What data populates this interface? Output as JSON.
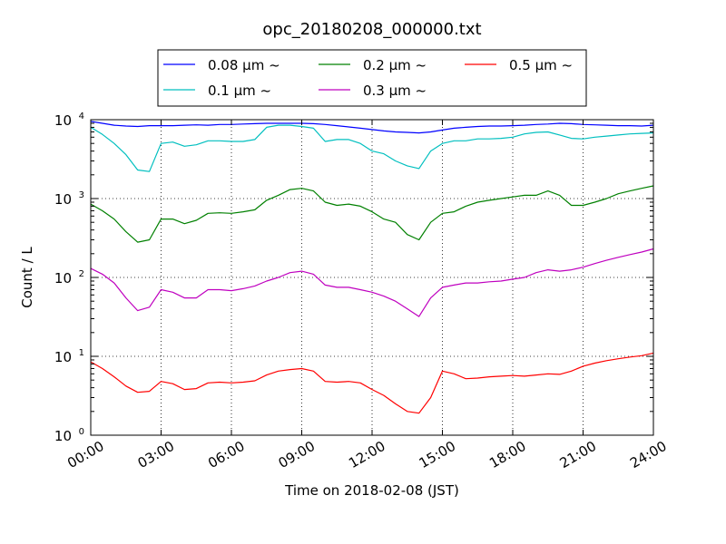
{
  "chart_data": {
    "type": "line",
    "title": "opc_20180208_000000.txt",
    "xlabel": "Time on 2018-02-08 (JST)",
    "ylabel": "Count / L",
    "y_scale": "log",
    "ylim": [
      1,
      10000
    ],
    "xlim": [
      "2018-02-08 00:00",
      "2018-02-09 00:00"
    ],
    "x_ticks": [
      "00:00",
      "03:00",
      "06:00",
      "09:00",
      "12:00",
      "15:00",
      "18:00",
      "21:00",
      "24:00"
    ],
    "y_ticks": [
      {
        "base": "10",
        "exp": "0"
      },
      {
        "base": "10",
        "exp": "1"
      },
      {
        "base": "10",
        "exp": "2"
      },
      {
        "base": "10",
        "exp": "3"
      },
      {
        "base": "10",
        "exp": "4"
      }
    ],
    "grid": "dotted",
    "legend_position": "top",
    "x": [
      "00:00",
      "00:30",
      "01:00",
      "01:30",
      "02:00",
      "02:30",
      "03:00",
      "03:30",
      "04:00",
      "04:30",
      "05:00",
      "05:30",
      "06:00",
      "06:30",
      "07:00",
      "07:30",
      "08:00",
      "08:30",
      "09:00",
      "09:30",
      "10:00",
      "10:30",
      "11:00",
      "11:30",
      "12:00",
      "12:30",
      "13:00",
      "13:30",
      "14:00",
      "14:30",
      "15:00",
      "15:30",
      "16:00",
      "16:30",
      "17:00",
      "17:30",
      "18:00",
      "18:30",
      "19:00",
      "19:30",
      "20:00",
      "20:30",
      "21:00",
      "21:30",
      "22:00",
      "22:30",
      "23:00",
      "23:30",
      "24:00"
    ],
    "series": [
      {
        "name": "0.08 μm ~",
        "color": "#0000ff",
        "values": [
          9500,
          9000,
          8500,
          8300,
          8200,
          8400,
          8400,
          8400,
          8500,
          8600,
          8500,
          8700,
          8700,
          8800,
          8900,
          9000,
          9000,
          9000,
          9000,
          8900,
          8700,
          8400,
          8100,
          7800,
          7500,
          7200,
          7000,
          6900,
          6800,
          7000,
          7400,
          7800,
          8000,
          8200,
          8300,
          8300,
          8400,
          8500,
          8700,
          8800,
          9000,
          8900,
          8700,
          8600,
          8500,
          8400,
          8400,
          8300,
          8500
        ]
      },
      {
        "name": "0.1 μm ~",
        "color": "#00bfbf",
        "values": [
          8000,
          6500,
          5000,
          3600,
          2300,
          2200,
          5000,
          5200,
          4600,
          4800,
          5400,
          5400,
          5300,
          5300,
          5600,
          8000,
          8500,
          8500,
          8200,
          7800,
          5300,
          5600,
          5600,
          5000,
          4000,
          3700,
          3000,
          2600,
          2400,
          4000,
          5000,
          5400,
          5400,
          5700,
          5700,
          5800,
          6000,
          6600,
          6900,
          7000,
          6400,
          5800,
          5700,
          6000,
          6200,
          6400,
          6600,
          6700,
          6800
        ]
      },
      {
        "name": "0.2 μm ~",
        "color": "#008000",
        "values": [
          850,
          700,
          550,
          380,
          280,
          300,
          550,
          550,
          480,
          530,
          650,
          660,
          650,
          680,
          720,
          950,
          1100,
          1300,
          1350,
          1250,
          900,
          820,
          850,
          800,
          680,
          550,
          500,
          350,
          300,
          500,
          650,
          680,
          800,
          900,
          950,
          1000,
          1050,
          1100,
          1100,
          1250,
          1100,
          820,
          820,
          900,
          1000,
          1150,
          1250,
          1350,
          1450
        ]
      },
      {
        "name": "0.3 μm ~",
        "color": "#bf00bf",
        "values": [
          130,
          110,
          85,
          55,
          38,
          42,
          70,
          65,
          55,
          55,
          70,
          70,
          68,
          72,
          78,
          90,
          100,
          115,
          120,
          110,
          80,
          75,
          75,
          70,
          65,
          58,
          50,
          40,
          32,
          55,
          75,
          80,
          85,
          85,
          88,
          90,
          95,
          100,
          115,
          125,
          120,
          125,
          135,
          150,
          165,
          180,
          195,
          210,
          230
        ]
      },
      {
        "name": "0.5 μm ~",
        "color": "#ff0000",
        "values": [
          8.5,
          7.0,
          5.5,
          4.2,
          3.5,
          3.6,
          4.8,
          4.5,
          3.8,
          3.9,
          4.6,
          4.7,
          4.6,
          4.7,
          4.9,
          5.8,
          6.5,
          6.8,
          7.0,
          6.5,
          4.8,
          4.7,
          4.8,
          4.6,
          3.8,
          3.2,
          2.5,
          2.0,
          1.9,
          3.0,
          6.5,
          6.0,
          5.2,
          5.3,
          5.5,
          5.6,
          5.7,
          5.6,
          5.8,
          6.0,
          5.9,
          6.5,
          7.5,
          8.2,
          8.8,
          9.3,
          9.8,
          10.2,
          11.0
        ]
      }
    ]
  }
}
